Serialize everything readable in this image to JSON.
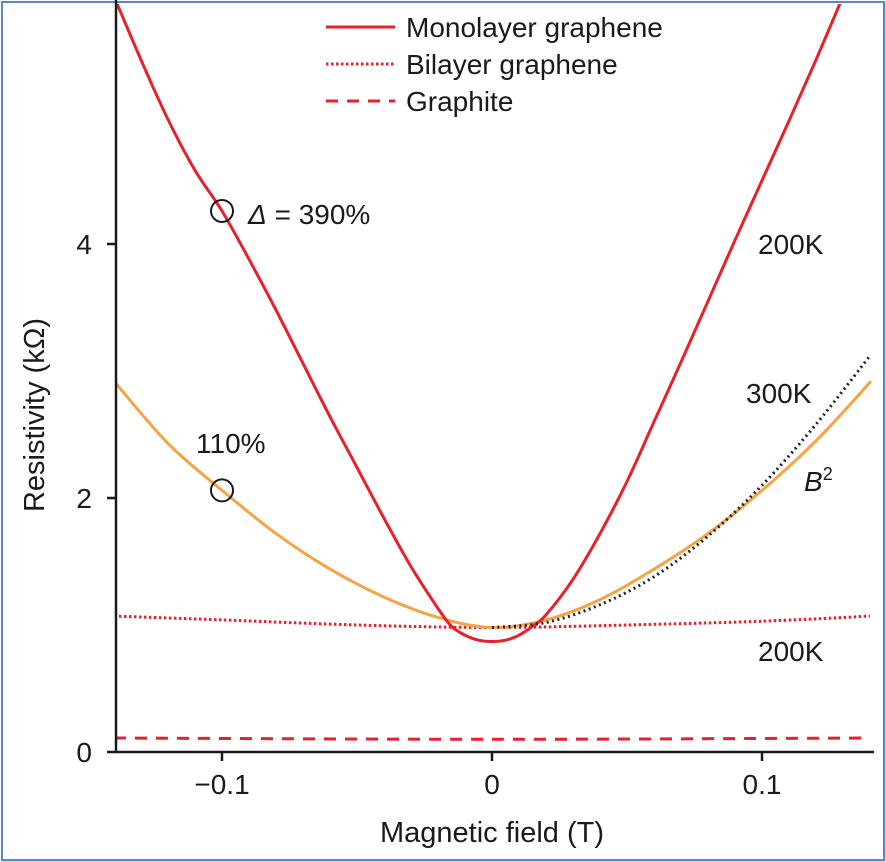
{
  "chart_data": {
    "type": "line",
    "xlabel": "Magnetic field (T)",
    "ylabel": "Resistivity (kΩ)",
    "xlim": [
      -0.14,
      0.14
    ],
    "ylim": [
      0,
      5.9
    ],
    "xticks": [
      -0.1,
      0,
      0.1
    ],
    "xtick_labels": [
      "−0.1",
      "0",
      "0.1"
    ],
    "yticks": [
      0,
      2,
      4
    ],
    "ytick_labels": [
      "0",
      "2",
      "4"
    ],
    "grid": false,
    "legend_position": "top-right",
    "series": [
      {
        "name": "Monolayer graphene",
        "color": "#e8202a",
        "style": "solid",
        "x": [
          -0.14,
          -0.13,
          -0.12,
          -0.11,
          -0.1,
          -0.09,
          -0.08,
          -0.07,
          -0.06,
          -0.05,
          -0.04,
          -0.03,
          -0.02,
          -0.015,
          -0.01,
          -0.005,
          0,
          0.005,
          0.01,
          0.015,
          0.02,
          0.03,
          0.04,
          0.05,
          0.06,
          0.07,
          0.08,
          0.09,
          0.1,
          0.11,
          0.12,
          0.13,
          0.14
        ],
        "y": [
          5.95,
          5.45,
          4.98,
          4.58,
          4.26,
          3.88,
          3.48,
          3.06,
          2.64,
          2.24,
          1.84,
          1.46,
          1.13,
          0.99,
          0.92,
          0.88,
          0.87,
          0.88,
          0.92,
          0.99,
          1.08,
          1.36,
          1.72,
          2.13,
          2.6,
          3.07,
          3.55,
          4.03,
          4.5,
          4.97,
          5.45,
          5.95,
          6.45
        ]
      },
      {
        "name": "Bilayer graphene",
        "color": "#e8202a",
        "style": "dotted",
        "x": [
          -0.14,
          -0.1,
          -0.05,
          0,
          0.05,
          0.1,
          0.14
        ],
        "y": [
          1.07,
          1.04,
          1.0,
          0.98,
          1.0,
          1.03,
          1.07
        ]
      },
      {
        "name": "Graphite",
        "color": "#e8202a",
        "style": "dashed",
        "x": [
          -0.14,
          0,
          0.14
        ],
        "y": [
          0.11,
          0.1,
          0.11
        ]
      },
      {
        "color": "#f5a444",
        "style": "solid",
        "x": [
          -0.14,
          -0.12,
          -0.1,
          -0.08,
          -0.06,
          -0.04,
          -0.02,
          0,
          0.02,
          0.04,
          0.06,
          0.08,
          0.1,
          0.12,
          0.14
        ],
        "y": [
          2.92,
          2.43,
          2.06,
          1.72,
          1.44,
          1.22,
          1.06,
          0.98,
          1.04,
          1.2,
          1.44,
          1.72,
          2.06,
          2.45,
          2.91
        ]
      },
      {
        "color": "#222222",
        "style": "dotted-fine",
        "x": [
          0,
          0.02,
          0.04,
          0.06,
          0.08,
          0.1,
          0.12,
          0.14
        ],
        "y": [
          0.98,
          1.02,
          1.16,
          1.38,
          1.7,
          2.1,
          2.58,
          3.12
        ]
      }
    ],
    "markers": [
      {
        "x": -0.1,
        "y": 4.26
      },
      {
        "x": -0.1,
        "y": 2.06
      }
    ],
    "annotations": {
      "delta_symbol": "Δ",
      "delta_rest": " = 390%",
      "pct_300k": "110%",
      "temp_mono": "200K",
      "temp_300k": "300K",
      "temp_bilayer": "200K",
      "b_letter": "B",
      "b_exp": "2",
      "temp_red_color": "#e8202a",
      "temp_orange_color": "#f5a444"
    }
  }
}
